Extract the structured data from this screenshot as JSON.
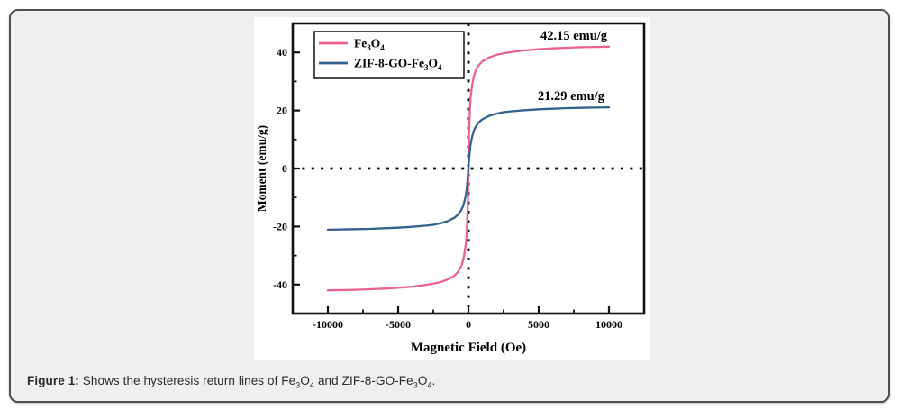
{
  "figure": {
    "caption_label": "Figure 1:",
    "caption_text": " Shows the hysteresis return lines of Fe~3~O~4~ and ZIF-8-GO-Fe~3~O~4~."
  },
  "colors": {
    "card_background": "#efefef",
    "card_border": "#4f4f4f",
    "axis": "#111111",
    "zero_line": "#000000",
    "series_pink": "#e9638e",
    "series_blue": "#35618f"
  },
  "chart_data": {
    "type": "line",
    "title": "",
    "xlabel": "Magnetic Field (Oe)",
    "ylabel": "Moment (emu/g)",
    "xlim": [
      -12500,
      12500
    ],
    "ylim": [
      -50,
      50
    ],
    "x_ticks": [
      -10000,
      -5000,
      0,
      5000,
      10000
    ],
    "y_ticks": [
      -40,
      -20,
      0,
      20,
      40
    ],
    "x_minor_ticks": [
      -7500,
      -2500,
      2500,
      7500
    ],
    "y_minor_ticks": [
      -30,
      -10,
      10,
      30
    ],
    "grid": false,
    "zero_reference_lines": "dotted",
    "legend_position": "top-left",
    "series": [
      {
        "name": "Fe~3~O~4~",
        "color": "#e9638e",
        "saturation_label": "42.15 emu/g",
        "saturation_value": 42.15,
        "points": [
          [
            -10000,
            -42.0
          ],
          [
            -9000,
            -41.9
          ],
          [
            -8000,
            -41.8
          ],
          [
            -7000,
            -41.6
          ],
          [
            -6000,
            -41.4
          ],
          [
            -5000,
            -41.1
          ],
          [
            -4000,
            -40.7
          ],
          [
            -3000,
            -40.1
          ],
          [
            -2500,
            -39.7
          ],
          [
            -2000,
            -39.2
          ],
          [
            -1500,
            -38.3
          ],
          [
            -1000,
            -37.0
          ],
          [
            -700,
            -35.4
          ],
          [
            -500,
            -33.5
          ],
          [
            -400,
            -32.0
          ],
          [
            -300,
            -29.8
          ],
          [
            -200,
            -26.5
          ],
          [
            -150,
            -24.0
          ],
          [
            -100,
            -20.0
          ],
          [
            -50,
            -13.0
          ],
          [
            -25,
            -7.5
          ],
          [
            0,
            0
          ],
          [
            25,
            7.5
          ],
          [
            50,
            13.0
          ],
          [
            100,
            20.0
          ],
          [
            150,
            24.0
          ],
          [
            200,
            26.5
          ],
          [
            300,
            29.8
          ],
          [
            400,
            32.0
          ],
          [
            500,
            33.5
          ],
          [
            700,
            35.4
          ],
          [
            1000,
            37.0
          ],
          [
            1500,
            38.3
          ],
          [
            2000,
            39.2
          ],
          [
            2500,
            39.7
          ],
          [
            3000,
            40.1
          ],
          [
            4000,
            40.7
          ],
          [
            5000,
            41.1
          ],
          [
            6000,
            41.4
          ],
          [
            7000,
            41.6
          ],
          [
            8000,
            41.8
          ],
          [
            9000,
            41.9
          ],
          [
            10000,
            42.0
          ]
        ],
        "annotation": {
          "text": "42.15 emu/g",
          "x": 7500,
          "y": 44.4
        }
      },
      {
        "name": "ZIF-8-GO-Fe~3~O~4~",
        "color": "#35618f",
        "saturation_label": "21.29 emu/g",
        "saturation_value": 21.29,
        "points": [
          [
            -10000,
            -21.1
          ],
          [
            -9000,
            -21.0
          ],
          [
            -8000,
            -20.9
          ],
          [
            -7000,
            -20.8
          ],
          [
            -6000,
            -20.6
          ],
          [
            -5000,
            -20.4
          ],
          [
            -4000,
            -20.1
          ],
          [
            -3000,
            -19.7
          ],
          [
            -2500,
            -19.4
          ],
          [
            -2000,
            -18.9
          ],
          [
            -1500,
            -18.2
          ],
          [
            -1000,
            -17.0
          ],
          [
            -700,
            -15.7
          ],
          [
            -500,
            -14.2
          ],
          [
            -400,
            -13.2
          ],
          [
            -300,
            -11.6
          ],
          [
            -200,
            -9.5
          ],
          [
            -150,
            -8.0
          ],
          [
            -100,
            -6.1
          ],
          [
            -50,
            -3.5
          ],
          [
            0,
            0
          ],
          [
            50,
            3.5
          ],
          [
            100,
            6.1
          ],
          [
            150,
            8.0
          ],
          [
            200,
            9.5
          ],
          [
            300,
            11.6
          ],
          [
            400,
            13.2
          ],
          [
            500,
            14.2
          ],
          [
            700,
            15.7
          ],
          [
            1000,
            17.0
          ],
          [
            1500,
            18.2
          ],
          [
            2000,
            18.9
          ],
          [
            2500,
            19.4
          ],
          [
            3000,
            19.7
          ],
          [
            4000,
            20.1
          ],
          [
            5000,
            20.4
          ],
          [
            6000,
            20.6
          ],
          [
            7000,
            20.8
          ],
          [
            8000,
            20.9
          ],
          [
            9000,
            21.0
          ],
          [
            10000,
            21.1
          ]
        ],
        "annotation": {
          "text": "21.29 emu/g",
          "x": 7300,
          "y": 23.6
        }
      }
    ]
  }
}
